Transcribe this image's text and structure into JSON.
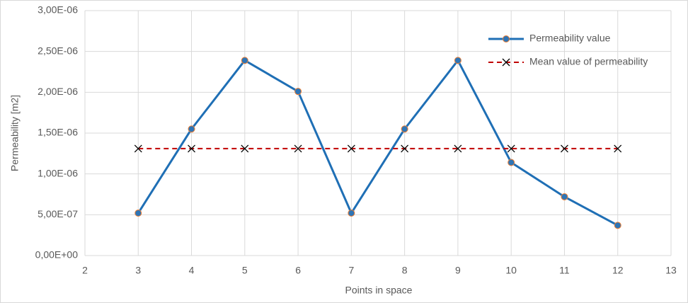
{
  "chart_data": {
    "type": "line",
    "x_label": "Points in space",
    "y_label": "Permeability [m2]",
    "x": [
      3,
      4,
      5,
      6,
      7,
      8,
      9,
      10,
      11,
      12
    ],
    "series": [
      {
        "name": "Permeability value",
        "color": "#1f6fb5",
        "dash": false,
        "marker": "circle",
        "marker_color": "#2e75b6",
        "marker_edge_color": "#ed7d31",
        "values": [
          5.2e-07,
          1.55e-06,
          2.39e-06,
          2.01e-06,
          5.2e-07,
          1.55e-06,
          2.39e-06,
          1.14e-06,
          7.2e-07,
          3.7e-07
        ]
      },
      {
        "name": "Mean value of permeability",
        "color": "#c00000",
        "dash": true,
        "marker": "x",
        "marker_color": "#000000",
        "values": [
          1.31e-06,
          1.31e-06,
          1.31e-06,
          1.31e-06,
          1.31e-06,
          1.31e-06,
          1.31e-06,
          1.31e-06,
          1.31e-06,
          1.31e-06
        ]
      }
    ],
    "xlim": [
      2,
      13
    ],
    "xticks": [
      2,
      3,
      4,
      5,
      6,
      7,
      8,
      9,
      10,
      11,
      12,
      13
    ],
    "ylim": [
      0,
      3e-06
    ],
    "yticks": [
      {
        "value": 0,
        "label": "0,00E+00"
      },
      {
        "value": 5e-07,
        "label": "5,00E-07"
      },
      {
        "value": 1e-06,
        "label": "1,00E-06"
      },
      {
        "value": 1.5e-06,
        "label": "1,50E-06"
      },
      {
        "value": 2e-06,
        "label": "2,00E-06"
      },
      {
        "value": 2.5e-06,
        "label": "2,50E-06"
      },
      {
        "value": 3e-06,
        "label": "3,00E-06"
      }
    ],
    "grid": true,
    "legend": "top-right"
  }
}
